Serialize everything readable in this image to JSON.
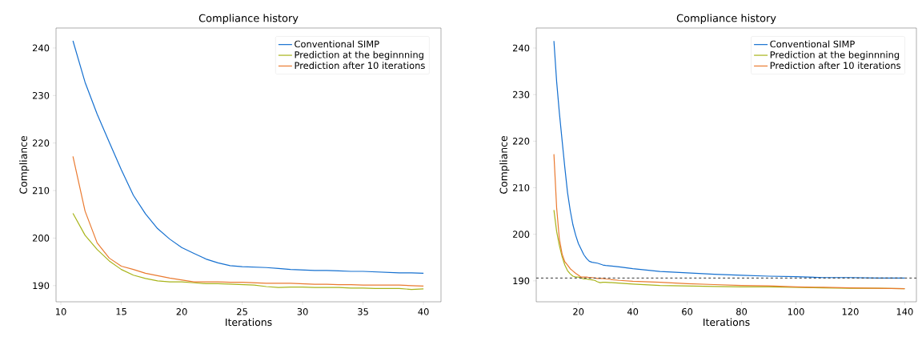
{
  "chart_data": [
    {
      "type": "line",
      "title": "Compliance history",
      "xlabel": "Iterations",
      "ylabel": "Compliance",
      "legend": "top right",
      "xlim": [
        9.6,
        41.45
      ],
      "ylim": [
        186.6,
        244.2
      ],
      "xticks": [
        10,
        15,
        20,
        25,
        30,
        35,
        40
      ],
      "yticks": [
        190,
        200,
        210,
        220,
        230,
        240
      ],
      "series": [
        {
          "name": "Conventional SIMP",
          "color": "#1570d0",
          "x": [
            11,
            12,
            13,
            14,
            15,
            16,
            17,
            18,
            19,
            20,
            21,
            22,
            23,
            24,
            25,
            26,
            27,
            28,
            29,
            30,
            31,
            32,
            33,
            34,
            35,
            36,
            37,
            38,
            39,
            40
          ],
          "values": [
            241.5,
            232.8,
            226.1,
            220.2,
            214.4,
            209.0,
            205.1,
            202.0,
            199.8,
            198.0,
            196.8,
            195.6,
            194.8,
            194.2,
            194.0,
            193.9,
            193.8,
            193.6,
            193.4,
            193.3,
            193.2,
            193.2,
            193.1,
            193.0,
            193.0,
            192.9,
            192.8,
            192.7,
            192.7,
            192.6
          ]
        },
        {
          "name": "Prediction at the beginnning",
          "color": "#a8b41a",
          "x": [
            11,
            12,
            13,
            14,
            15,
            16,
            17,
            18,
            19,
            20,
            21,
            22,
            23,
            24,
            25,
            26,
            27,
            28,
            29,
            30,
            31,
            32,
            33,
            34,
            35,
            36,
            37,
            38,
            39,
            40
          ],
          "values": [
            205.2,
            200.6,
            197.6,
            195.2,
            193.4,
            192.2,
            191.5,
            191.0,
            190.8,
            190.8,
            190.6,
            190.4,
            190.4,
            190.3,
            190.2,
            190.1,
            189.8,
            189.6,
            189.7,
            189.7,
            189.6,
            189.6,
            189.6,
            189.5,
            189.5,
            189.4,
            189.4,
            189.4,
            189.2,
            189.3
          ]
        },
        {
          "name": "Prediction after 10 iterations",
          "color": "#ea7a30",
          "x": [
            11,
            12,
            13,
            14,
            15,
            16,
            17,
            18,
            19,
            20,
            21,
            22,
            23,
            24,
            25,
            26,
            27,
            28,
            29,
            30,
            31,
            32,
            33,
            34,
            35,
            36,
            37,
            38,
            39,
            40
          ],
          "values": [
            217.2,
            205.7,
            199.0,
            195.8,
            194.1,
            193.4,
            192.6,
            192.1,
            191.6,
            191.2,
            190.8,
            190.8,
            190.8,
            190.7,
            190.7,
            190.6,
            190.5,
            190.5,
            190.5,
            190.4,
            190.3,
            190.3,
            190.2,
            190.2,
            190.1,
            190.1,
            190.1,
            190.1,
            190.0,
            189.9
          ]
        }
      ]
    },
    {
      "type": "line",
      "title": "Compliance history",
      "xlabel": "Iterations",
      "ylabel": "Compliance",
      "legend": "top right",
      "xlim": [
        4.5,
        144.3
      ],
      "ylim": [
        185.5,
        244.3
      ],
      "xticks": [
        20,
        40,
        60,
        80,
        100,
        120,
        140
      ],
      "yticks": [
        190,
        200,
        210,
        220,
        230,
        240
      ],
      "ref_lines": [
        {
          "axis": "y",
          "value": 190.6,
          "color": "#333333",
          "line_style": "dashed"
        }
      ],
      "series": [
        {
          "name": "Conventional SIMP",
          "color": "#1570d0",
          "x": [
            11,
            12,
            13,
            14,
            15,
            16,
            17,
            18,
            19,
            20,
            21,
            22,
            23,
            24,
            25,
            26,
            27,
            28,
            29,
            30,
            35,
            40,
            50,
            60,
            70,
            80,
            90,
            100,
            110,
            120,
            130,
            140
          ],
          "values": [
            241.5,
            232.8,
            226.1,
            220.2,
            214.4,
            209.0,
            205.1,
            202.0,
            199.8,
            198.0,
            196.8,
            195.6,
            194.8,
            194.2,
            194.0,
            193.9,
            193.8,
            193.6,
            193.4,
            193.3,
            193.0,
            192.6,
            192.0,
            191.7,
            191.4,
            191.2,
            191.0,
            190.9,
            190.7,
            190.7,
            190.6,
            190.6
          ]
        },
        {
          "name": "Prediction at the beginnning",
          "color": "#a8b41a",
          "x": [
            11,
            12,
            13,
            14,
            15,
            16,
            17,
            18,
            19,
            20,
            21,
            22,
            23,
            24,
            25,
            26,
            27,
            28,
            29,
            30,
            35,
            40,
            50,
            60,
            70,
            80,
            90,
            100,
            110,
            120,
            130,
            140
          ],
          "values": [
            205.2,
            200.6,
            197.6,
            195.2,
            193.4,
            192.2,
            191.5,
            191.0,
            190.8,
            190.8,
            190.6,
            190.4,
            190.4,
            190.3,
            190.2,
            190.1,
            189.8,
            189.6,
            189.7,
            189.7,
            189.5,
            189.3,
            189.0,
            188.9,
            188.8,
            188.7,
            188.7,
            188.6,
            188.5,
            188.4,
            188.4,
            188.3
          ]
        },
        {
          "name": "Prediction after 10 iterations",
          "color": "#ea7a30",
          "x": [
            11,
            12,
            13,
            14,
            15,
            16,
            17,
            18,
            19,
            20,
            21,
            22,
            23,
            24,
            25,
            26,
            27,
            28,
            29,
            30,
            35,
            40,
            50,
            60,
            70,
            80,
            90,
            100,
            110,
            120,
            130,
            140
          ],
          "values": [
            217.2,
            205.7,
            199.0,
            195.8,
            194.1,
            193.4,
            192.6,
            192.1,
            191.6,
            191.2,
            190.8,
            190.8,
            190.8,
            190.7,
            190.7,
            190.6,
            190.5,
            190.5,
            190.5,
            190.4,
            190.1,
            189.9,
            189.7,
            189.4,
            189.2,
            189.0,
            188.9,
            188.7,
            188.6,
            188.5,
            188.4,
            188.3
          ]
        }
      ]
    }
  ]
}
